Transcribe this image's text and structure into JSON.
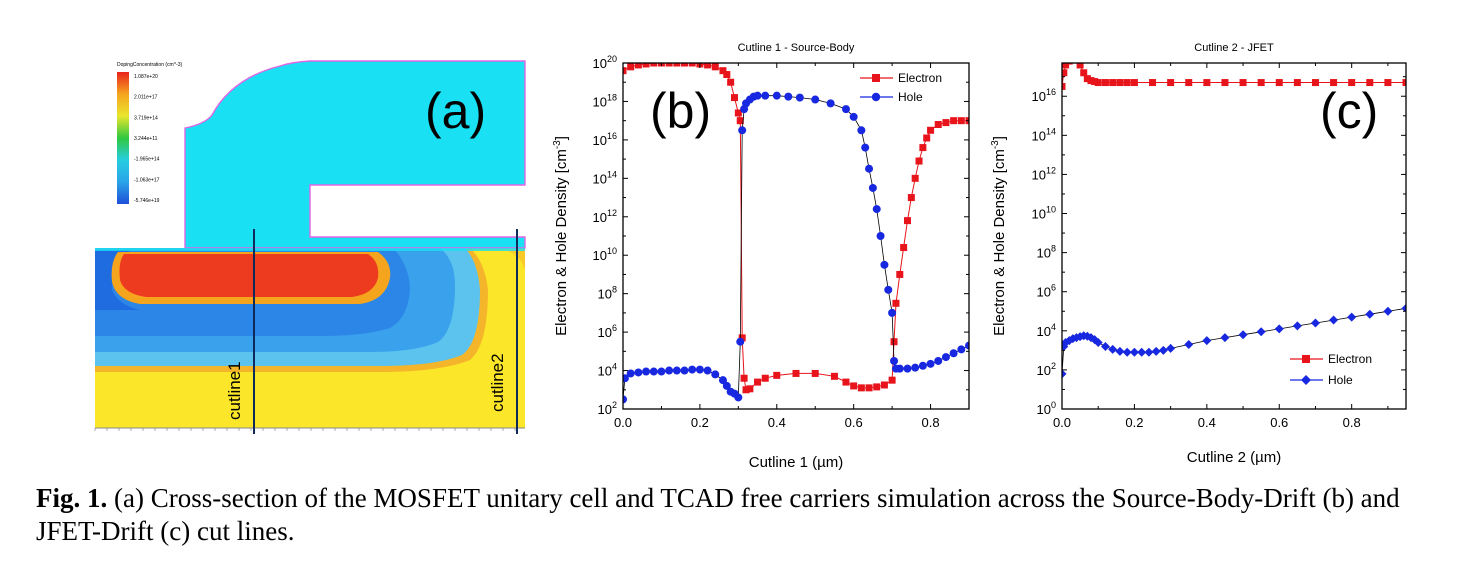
{
  "panel_a": {
    "label": "(a)",
    "colorbar": {
      "title": "DopingConcentration (cm^-3)",
      "labels": [
        "1.087e+20",
        "2.011e+17",
        "3.719e+14",
        "3.244e+11",
        "-1.965e+14",
        "-1.063e+17",
        "-5.746e+19"
      ],
      "colors": [
        "#e8231c",
        "#f5a41e",
        "#e9e62c",
        "#31c840",
        "#26cde0",
        "#2aa4e8",
        "#1f4fd8"
      ]
    },
    "cutline1": "cutline1",
    "cutline2": "cutline2",
    "colors": {
      "oxide": "#19e0f2",
      "gate_border": "#e066e8",
      "n_plus": "#ec3b1e",
      "p_body": "#2b86e8",
      "p_mid": "#3aa2ec",
      "p_light": "#5cc3ef",
      "drift": "#fbe62a",
      "drift_edge": "#f5b52a"
    }
  },
  "chart_data": [
    {
      "id": "b",
      "type": "line",
      "title": "Cutline 1 - Source-Body",
      "panel_label": "(b)",
      "xlabel": "Cutline 1 (µm)",
      "ylabel": "Electron & Hole Density [cm",
      "ylabel_sup": "-3",
      "ylabel_close": "]",
      "xlim": [
        0.0,
        0.9
      ],
      "ylim_log10": [
        2,
        20
      ],
      "yscale": "log",
      "xticks": [
        "0.0",
        "0.2",
        "0.4",
        "0.6",
        "0.8"
      ],
      "xtick_values": [
        0.0,
        0.2,
        0.4,
        0.6,
        0.8
      ],
      "yticks_exp": [
        "2",
        "4",
        "6",
        "8",
        "10",
        "12",
        "14",
        "16",
        "18",
        "20"
      ],
      "legend": [
        "Electron",
        "Hole"
      ],
      "series": [
        {
          "name": "Electron",
          "color": "#e8141c",
          "marker": "square",
          "x": [
            0.0,
            0.02,
            0.04,
            0.06,
            0.08,
            0.1,
            0.12,
            0.14,
            0.16,
            0.18,
            0.2,
            0.22,
            0.24,
            0.26,
            0.27,
            0.28,
            0.29,
            0.3,
            0.305,
            0.31,
            0.315,
            0.32,
            0.33,
            0.35,
            0.37,
            0.4,
            0.45,
            0.5,
            0.55,
            0.58,
            0.6,
            0.62,
            0.64,
            0.66,
            0.68,
            0.7,
            0.705,
            0.71,
            0.72,
            0.73,
            0.74,
            0.75,
            0.76,
            0.77,
            0.78,
            0.79,
            0.8,
            0.82,
            0.84,
            0.86,
            0.88,
            0.9
          ],
          "y_log10": [
            19.6,
            19.8,
            19.9,
            19.95,
            20.0,
            20.0,
            20.0,
            20.0,
            20.0,
            20.0,
            19.95,
            19.9,
            19.8,
            19.6,
            19.4,
            19.0,
            18.2,
            17.4,
            17.0,
            5.7,
            3.6,
            3.0,
            3.05,
            3.4,
            3.6,
            3.75,
            3.85,
            3.85,
            3.7,
            3.4,
            3.2,
            3.1,
            3.1,
            3.15,
            3.25,
            3.5,
            5.5,
            7.5,
            9.0,
            10.4,
            11.8,
            13.0,
            14.0,
            14.9,
            15.6,
            16.1,
            16.5,
            16.8,
            16.9,
            17.0,
            17.0,
            17.0
          ]
        },
        {
          "name": "Hole",
          "color": "#1828e0",
          "marker": "circle",
          "x": [
            0.0,
            0.005,
            0.02,
            0.04,
            0.06,
            0.08,
            0.1,
            0.12,
            0.14,
            0.16,
            0.18,
            0.2,
            0.22,
            0.24,
            0.26,
            0.27,
            0.28,
            0.29,
            0.3,
            0.305,
            0.31,
            0.315,
            0.32,
            0.33,
            0.34,
            0.35,
            0.37,
            0.4,
            0.43,
            0.46,
            0.5,
            0.54,
            0.58,
            0.6,
            0.62,
            0.63,
            0.64,
            0.65,
            0.66,
            0.67,
            0.68,
            0.69,
            0.7,
            0.705,
            0.71,
            0.72,
            0.74,
            0.76,
            0.78,
            0.8,
            0.82,
            0.84,
            0.86,
            0.88,
            0.9
          ],
          "y_log10": [
            2.5,
            3.6,
            3.85,
            3.9,
            3.95,
            3.95,
            3.95,
            4.0,
            4.0,
            4.0,
            4.05,
            4.05,
            4.0,
            3.8,
            3.5,
            3.2,
            2.9,
            2.8,
            2.6,
            5.5,
            16.5,
            17.6,
            17.9,
            18.1,
            18.25,
            18.3,
            18.3,
            18.3,
            18.25,
            18.2,
            18.1,
            17.9,
            17.6,
            17.2,
            16.5,
            15.6,
            14.5,
            13.5,
            12.4,
            11.0,
            9.5,
            8.2,
            7.0,
            4.5,
            4.1,
            4.1,
            4.1,
            4.15,
            4.25,
            4.35,
            4.5,
            4.7,
            4.9,
            5.1,
            5.3
          ]
        }
      ]
    },
    {
      "id": "c",
      "type": "line",
      "title": "Cutline 2 - JFET",
      "panel_label": "(c)",
      "xlabel": "Cutline 2 (µm)",
      "ylabel": "Electron & Hole Density [cm",
      "ylabel_sup": "-3",
      "ylabel_close": "]",
      "xlim": [
        0.0,
        0.95
      ],
      "ylim_log10": [
        0,
        17.7
      ],
      "yscale": "log",
      "xticks": [
        "0.0",
        "0.2",
        "0.4",
        "0.6",
        "0.8"
      ],
      "xtick_values": [
        0.0,
        0.2,
        0.4,
        0.6,
        0.8
      ],
      "yticks_exp": [
        "0",
        "2",
        "4",
        "6",
        "8",
        "10",
        "12",
        "14",
        "16"
      ],
      "legend": [
        "Electron",
        "Hole"
      ],
      "series": [
        {
          "name": "Electron",
          "color": "#e8141c",
          "marker": "square",
          "x": [
            0.0,
            0.005,
            0.01,
            0.02,
            0.03,
            0.04,
            0.05,
            0.06,
            0.07,
            0.08,
            0.09,
            0.1,
            0.12,
            0.14,
            0.16,
            0.18,
            0.2,
            0.25,
            0.3,
            0.35,
            0.4,
            0.45,
            0.5,
            0.55,
            0.6,
            0.65,
            0.7,
            0.75,
            0.8,
            0.85,
            0.9,
            0.95
          ],
          "y_log10": [
            16.5,
            17.2,
            17.6,
            17.8,
            17.9,
            17.85,
            17.6,
            17.2,
            16.9,
            16.8,
            16.75,
            16.7,
            16.7,
            16.7,
            16.7,
            16.7,
            16.7,
            16.7,
            16.7,
            16.7,
            16.7,
            16.7,
            16.7,
            16.7,
            16.7,
            16.7,
            16.7,
            16.7,
            16.7,
            16.7,
            16.7,
            16.7
          ]
        },
        {
          "name": "Hole",
          "color": "#1828e0",
          "marker": "diamond",
          "x": [
            0.0,
            0.005,
            0.01,
            0.02,
            0.03,
            0.04,
            0.05,
            0.06,
            0.07,
            0.08,
            0.09,
            0.1,
            0.12,
            0.14,
            0.16,
            0.18,
            0.2,
            0.22,
            0.24,
            0.26,
            0.28,
            0.3,
            0.35,
            0.4,
            0.45,
            0.5,
            0.55,
            0.6,
            0.65,
            0.7,
            0.75,
            0.8,
            0.85,
            0.9,
            0.95
          ],
          "y_log10": [
            1.8,
            3.2,
            3.4,
            3.5,
            3.6,
            3.65,
            3.7,
            3.75,
            3.72,
            3.65,
            3.55,
            3.4,
            3.2,
            3.05,
            2.95,
            2.9,
            2.9,
            2.9,
            2.9,
            2.95,
            3.0,
            3.1,
            3.3,
            3.5,
            3.65,
            3.8,
            3.95,
            4.1,
            4.25,
            4.4,
            4.55,
            4.7,
            4.85,
            5.0,
            5.15
          ]
        }
      ]
    }
  ],
  "caption": {
    "bold": "Fig. 1.",
    "text": " (a) Cross-section of the MOSFET unitary cell and TCAD free carriers simulation across the Source-Body-Drift (b) and JFET-Drift (c) cut lines."
  }
}
